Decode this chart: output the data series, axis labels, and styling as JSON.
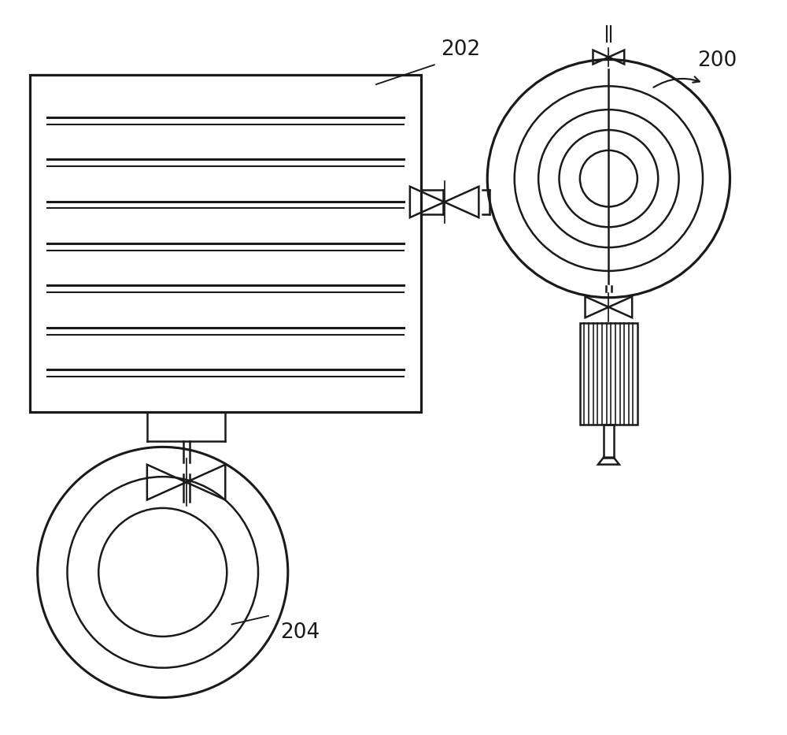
{
  "bg_color": "#ffffff",
  "line_color": "#1a1a1a",
  "lw": 1.8,
  "fig_w": 10.0,
  "fig_h": 9.33,
  "label_200": "200",
  "label_202": "202",
  "label_204": "204"
}
